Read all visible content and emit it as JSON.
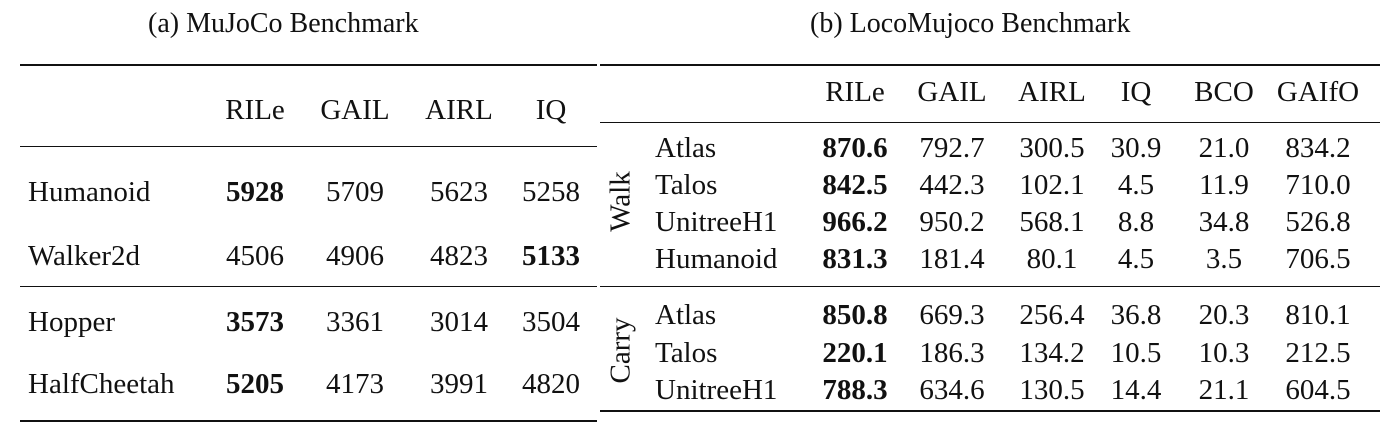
{
  "left": {
    "caption": "(a) MuJoCo Benchmark",
    "headers": [
      "RILe",
      "GAIL",
      "AIRL",
      "IQ"
    ],
    "rows": [
      {
        "env": "Humanoid",
        "values": [
          "5928",
          "5709",
          "5623",
          "5258"
        ],
        "bold": [
          0
        ]
      },
      {
        "env": "Walker2d",
        "values": [
          "4506",
          "4906",
          "4823",
          "5133"
        ],
        "bold": [
          3
        ]
      },
      {
        "env": "Hopper",
        "values": [
          "3573",
          "3361",
          "3014",
          "3504"
        ],
        "bold": [
          0
        ]
      },
      {
        "env": "HalfCheetah",
        "values": [
          "5205",
          "4173",
          "3991",
          "4820"
        ],
        "bold": [
          0
        ]
      }
    ]
  },
  "right": {
    "caption": "(b) LocoMujoco Benchmark",
    "headers": [
      "RILe",
      "GAIL",
      "AIRL",
      "IQ",
      "BCO",
      "GAIfO"
    ],
    "groups": [
      {
        "label": "Walk",
        "rows": [
          {
            "env": "Atlas",
            "values": [
              "870.6",
              "792.7",
              "300.5",
              "30.9",
              "21.0",
              "834.2"
            ],
            "bold": [
              0
            ]
          },
          {
            "env": "Talos",
            "values": [
              "842.5",
              "442.3",
              "102.1",
              "4.5",
              "11.9",
              "710.0"
            ],
            "bold": [
              0
            ]
          },
          {
            "env": "UnitreeH1",
            "values": [
              "966.2",
              "950.2",
              "568.1",
              "8.8",
              "34.8",
              "526.8"
            ],
            "bold": [
              0
            ]
          },
          {
            "env": "Humanoid",
            "values": [
              "831.3",
              "181.4",
              "80.1",
              "4.5",
              "3.5",
              "706.5"
            ],
            "bold": [
              0
            ]
          }
        ]
      },
      {
        "label": "Carry",
        "rows": [
          {
            "env": "Atlas",
            "values": [
              "850.8",
              "669.3",
              "256.4",
              "36.8",
              "20.3",
              "810.1"
            ],
            "bold": [
              0
            ]
          },
          {
            "env": "Talos",
            "values": [
              "220.1",
              "186.3",
              "134.2",
              "10.5",
              "10.3",
              "212.5"
            ],
            "bold": [
              0
            ]
          },
          {
            "env": "UnitreeH1",
            "values": [
              "788.3",
              "634.6",
              "130.5",
              "14.4",
              "21.1",
              "604.5"
            ],
            "bold": [
              0
            ]
          }
        ]
      }
    ]
  }
}
